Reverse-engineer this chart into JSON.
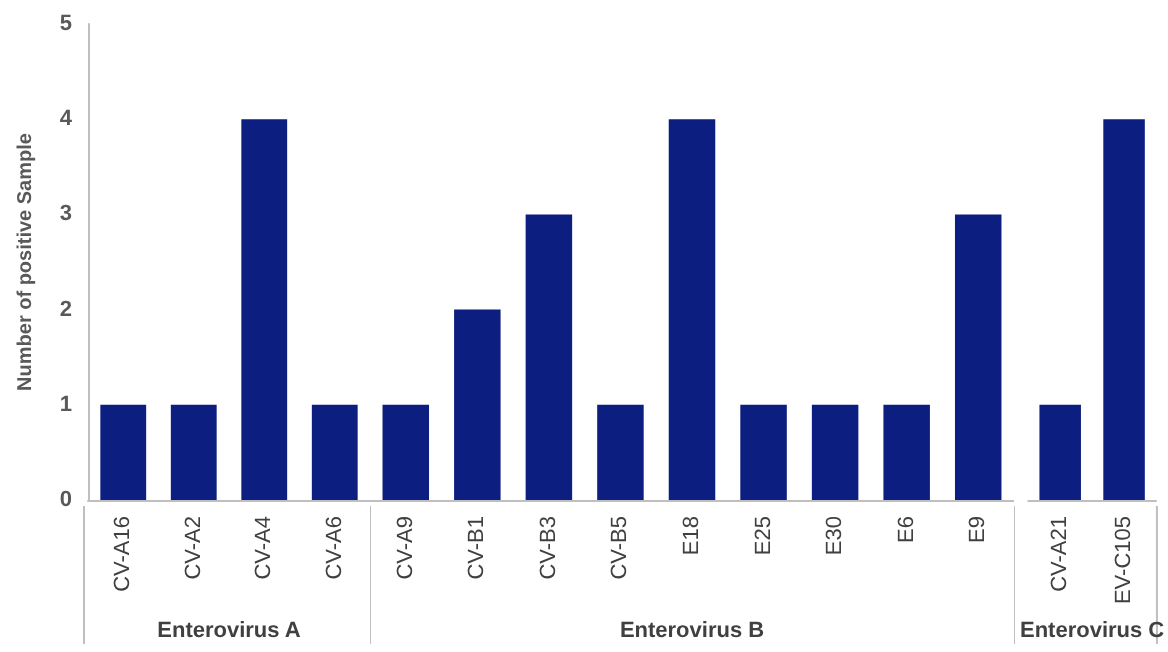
{
  "chart_data": [
    {
      "type": "bar",
      "ylabel": "Number of positive Sample",
      "xlabel": "Enterovirus A",
      "categories": [
        "CV-A16",
        "CV-A2",
        "CV-A4",
        "CV-A6"
      ],
      "values": [
        1,
        1,
        4,
        1
      ],
      "color": "#0c1f80",
      "ylim": [
        0,
        5
      ],
      "yticks": [
        0,
        1,
        2,
        3,
        4,
        5
      ],
      "grid": false
    },
    {
      "type": "bar",
      "xlabel": "Enterovirus B",
      "categories": [
        "CV-A9",
        "CV-B1",
        "CV-B3",
        "CV-B5",
        "E18",
        "E25",
        "E30",
        "E6",
        "E9"
      ],
      "values": [
        1,
        2,
        3,
        1,
        4,
        1,
        1,
        1,
        3
      ],
      "color": "#0c1f80",
      "ylim": [
        0,
        5
      ],
      "yticks": [
        0,
        1,
        2,
        3,
        4,
        5
      ],
      "grid": false,
      "tick_labels": "x"
    },
    {
      "type": "bar",
      "xlabel": "Enterovirus C",
      "categories": [
        "CV-A21",
        "EV-C105"
      ],
      "values": [
        1,
        4
      ],
      "color": "#0c1f80",
      "ylim": [
        0,
        5
      ],
      "yticks": [
        0,
        1,
        2,
        3,
        4,
        5
      ],
      "grid": false,
      "tick_labels": "x"
    }
  ]
}
